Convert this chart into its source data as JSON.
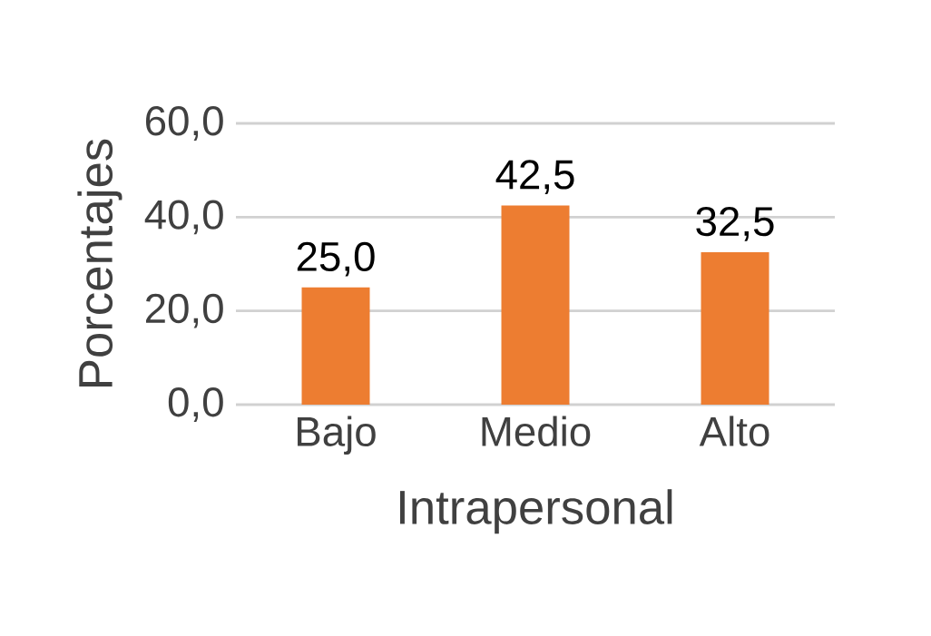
{
  "chart_data": {
    "type": "bar",
    "xlabel": "Intrapersonal",
    "ylabel": "Porcentajes",
    "categories": [
      "Bajo",
      "Medio",
      "Alto"
    ],
    "values": [
      25.0,
      42.5,
      32.5
    ],
    "value_labels": [
      "25,0",
      "42,5",
      "32,5"
    ],
    "color": "#ed7d31",
    "ylim": [
      0,
      60
    ],
    "yticks": [
      {
        "value": 0,
        "label": "0,0"
      },
      {
        "value": 20,
        "label": "20,0"
      },
      {
        "value": 40,
        "label": "40,0"
      },
      {
        "value": 60,
        "label": "60,0"
      }
    ],
    "grid": "y"
  }
}
